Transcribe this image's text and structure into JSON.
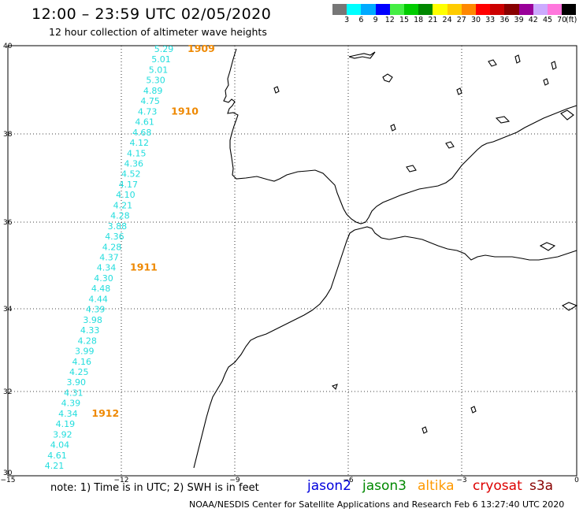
{
  "header": {
    "title": "12:00 – 23:59 UTC 02/05/2020",
    "subtitle": "12 hour collection of altimeter wave heights"
  },
  "color_scale": {
    "labels": [
      "3",
      "6",
      "9",
      "12",
      "15",
      "18",
      "21",
      "24",
      "27",
      "30",
      "33",
      "36",
      "39",
      "42",
      "45",
      "70",
      "(ft)"
    ],
    "colors": [
      "#777777",
      "#00ffff",
      "#00aaff",
      "#0000ff",
      "#44ee44",
      "#00cc00",
      "#008800",
      "#ffff00",
      "#ffcc00",
      "#ff8800",
      "#ff0000",
      "#cc0000",
      "#880000",
      "#990099",
      "#ccaaff",
      "#ff77dd",
      "#000000"
    ]
  },
  "axes": {
    "lon_ticks": [
      "−15",
      "−12",
      "−9",
      "−6",
      "−3",
      "0"
    ],
    "lat_ticks": [
      "40",
      "38",
      "36",
      "34",
      "32",
      "30"
    ]
  },
  "track": {
    "color": "#22dddd",
    "values": [
      "5.29",
      "5.01",
      "5.01",
      "5.30",
      "4.89",
      "4.75",
      "4.73",
      "4.61",
      "4.68",
      "4.12",
      "4.15",
      "4.36",
      "4.52",
      "4.17",
      "4.10",
      "4.21",
      "4.28",
      "3.88",
      "4.36",
      "4.28",
      "4.37",
      "4.34",
      "4.30",
      "4.48",
      "4.44",
      "4.39",
      "3.98",
      "4.33",
      "4.28",
      "3.99",
      "4.16",
      "4.25",
      "3.90",
      "4.31",
      "4.39",
      "4.34",
      "4.19",
      "3.92",
      "4.04",
      "4.61",
      "4.21"
    ]
  },
  "times": {
    "color": "#ee8800",
    "items": [
      "1909",
      "1910",
      "1911",
      "1912"
    ]
  },
  "footer": {
    "note": "note:  1) Time is in UTC;  2) SWH is in feet",
    "satellites": [
      {
        "name": "jason2",
        "color": "#0000dd"
      },
      {
        "name": "jason3",
        "color": "#008800"
      },
      {
        "name": "altika",
        "color": "#ff9900"
      },
      {
        "name": "cryosat",
        "color": "#dd0000"
      },
      {
        "name": "s3a",
        "color": "#880000"
      }
    ],
    "credit": "NOAA/NESDIS Center for Satellite Applications and Research    Feb  6 13:27:40 UTC 2020"
  }
}
